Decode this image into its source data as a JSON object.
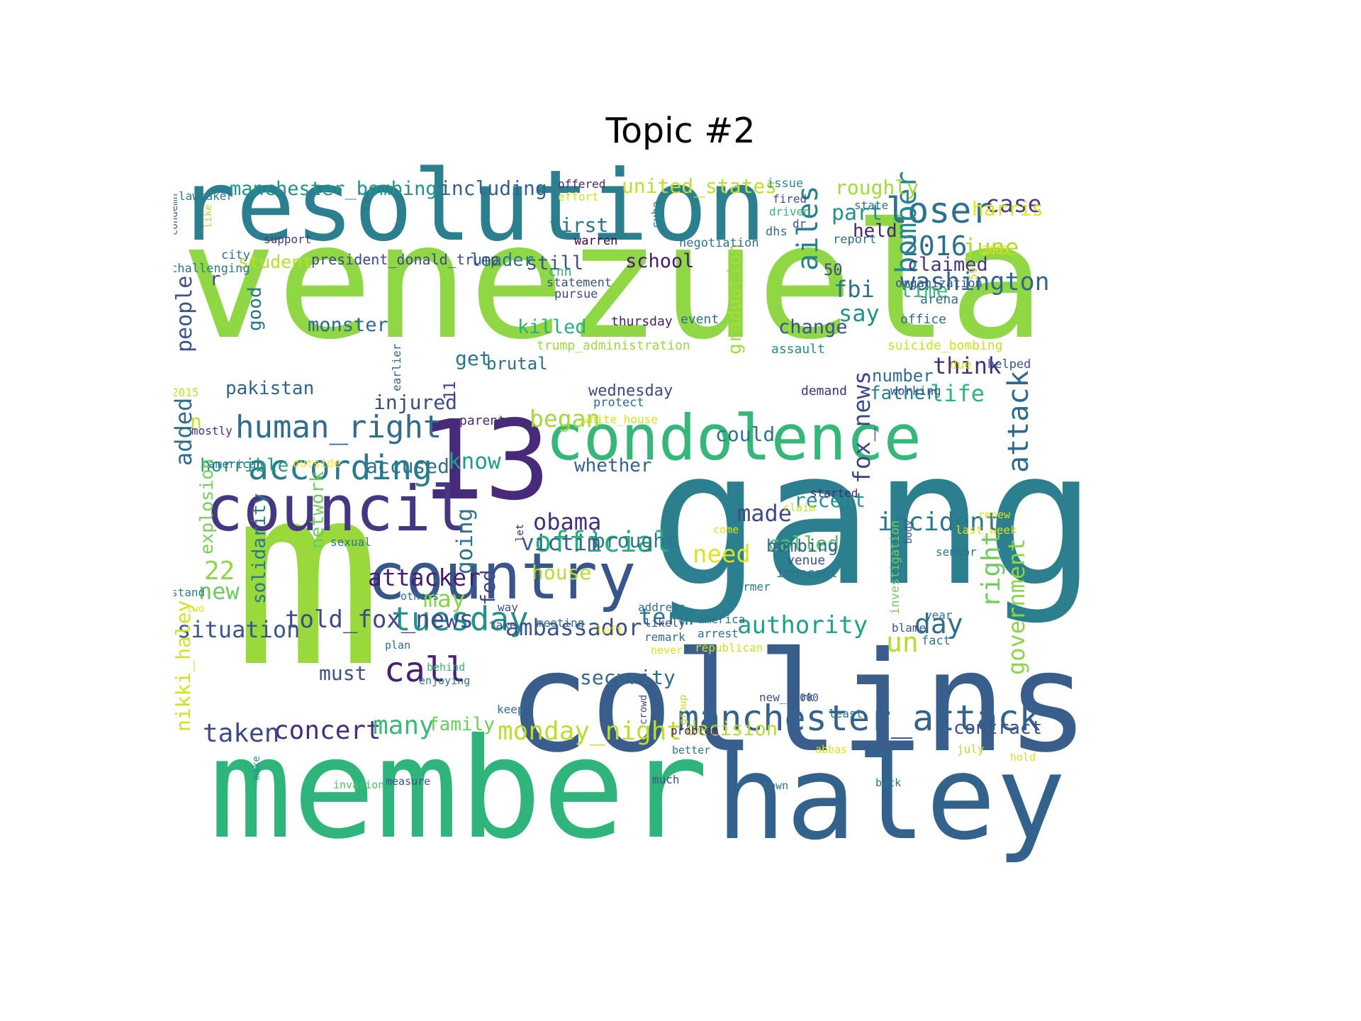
{
  "title": "Topic #2",
  "palette": {
    "background": "#ffffff",
    "c1": "#440154",
    "c2": "#472d7b",
    "c3": "#3b528b",
    "c4": "#2c728e",
    "c5": "#21918c",
    "c6": "#28ae80",
    "c7": "#5ec962",
    "c8": "#addc30",
    "c9": "#fde725"
  },
  "words": [
    {
      "text": "venezuela",
      "color": "#8fd744"
    },
    {
      "text": "resolution",
      "color": "#2c7f8e"
    },
    {
      "text": "gang",
      "color": "#2c7f8e"
    },
    {
      "text": "m",
      "color": "#9ad93c"
    },
    {
      "text": "member",
      "color": "#2fb47c"
    },
    {
      "text": "collins",
      "color": "#3a5e8c"
    },
    {
      "text": "haley",
      "color": "#33638d"
    },
    {
      "text": "13",
      "color": "#472a7a"
    },
    {
      "text": "condolence",
      "color": "#35b779"
    },
    {
      "text": "council",
      "color": "#453781"
    },
    {
      "text": "country",
      "color": "#39568c"
    },
    {
      "text": "manchester_attack",
      "color": "#33638d"
    },
    {
      "text": "loser",
      "color": "#2c728e"
    },
    {
      "text": "human_right",
      "color": "#2f6c8e"
    },
    {
      "text": "according",
      "color": "#287c8e"
    },
    {
      "text": "tuesday",
      "color": "#21918c"
    },
    {
      "text": "official",
      "color": "#29af7f"
    },
    {
      "text": "call",
      "color": "#481f70"
    },
    {
      "text": "washington",
      "color": "#31668e"
    },
    {
      "text": "2016",
      "color": "#2d708e"
    },
    {
      "text": "june",
      "color": "#addc30"
    },
    {
      "text": "case",
      "color": "#433e85"
    },
    {
      "text": "ailes",
      "color": "#26828e"
    },
    {
      "text": "bomber",
      "color": "#24868e"
    },
    {
      "text": "fox_news",
      "color": "#3f4889"
    },
    {
      "text": "attack",
      "color": "#30698e"
    },
    {
      "text": "right",
      "color": "#6ccd5a"
    },
    {
      "text": "government",
      "color": "#8bd646"
    },
    {
      "text": "incident",
      "color": "#2a788e"
    },
    {
      "text": "authority",
      "color": "#1fa187"
    },
    {
      "text": "day",
      "color": "#2f6c8e"
    },
    {
      "text": "un",
      "color": "#b5de2b"
    },
    {
      "text": "monday_night",
      "color": "#bddf26"
    },
    {
      "text": "concert",
      "color": "#472d7b"
    },
    {
      "text": "taken",
      "color": "#3e4989"
    },
    {
      "text": "many",
      "color": "#38b977"
    },
    {
      "text": "ambassador",
      "color": "#3b528b"
    },
    {
      "text": "told_fox_news",
      "color": "#3e4989"
    },
    {
      "text": "situation",
      "color": "#39568c"
    },
    {
      "text": "attacker",
      "color": "#481c6e"
    },
    {
      "text": "may",
      "color": "#86d549"
    },
    {
      "text": "obama",
      "color": "#46307e"
    },
    {
      "text": "victim",
      "color": "#34608d"
    },
    {
      "text": "brought",
      "color": "#2a778e"
    },
    {
      "text": "made",
      "color": "#3f4889"
    },
    {
      "text": "recent",
      "color": "#20938c"
    },
    {
      "text": "need",
      "color": "#dde318"
    },
    {
      "text": "called",
      "color": "#52c569"
    },
    {
      "text": "think",
      "color": "#472d7b"
    },
    {
      "text": "life",
      "color": "#2fb47c"
    },
    {
      "text": "father",
      "color": "#26828e"
    },
    {
      "text": "number",
      "color": "#2d708e"
    },
    {
      "text": "began",
      "color": "#a2da37"
    },
    {
      "text": "know",
      "color": "#1f9e89"
    },
    {
      "text": "injured",
      "color": "#3e4989"
    },
    {
      "text": "pakistan",
      "color": "#33638d"
    },
    {
      "text": "people",
      "color": "#3b528b"
    },
    {
      "text": "added",
      "color": "#2e6d8e"
    },
    {
      "text": "horrible",
      "color": "#1f9e89"
    },
    {
      "text": "accused",
      "color": "#2c728e"
    },
    {
      "text": "whether",
      "color": "#33638d"
    },
    {
      "text": "could",
      "color": "#2c728e"
    },
    {
      "text": "get",
      "color": "#2a778e"
    },
    {
      "text": "brutal",
      "color": "#2d708e"
    },
    {
      "text": "monster",
      "color": "#306a8e"
    },
    {
      "text": "killed",
      "color": "#29af7f"
    },
    {
      "text": "change",
      "color": "#3b528b"
    },
    {
      "text": "say",
      "color": "#21918c"
    },
    {
      "text": "fbi",
      "color": "#2d708e"
    },
    {
      "text": "part",
      "color": "#21918c"
    },
    {
      "text": "held",
      "color": "#482475"
    },
    {
      "text": "claimed",
      "color": "#453781"
    },
    {
      "text": "time",
      "color": "#3dbc74"
    },
    {
      "text": "50",
      "color": "#3e4989"
    },
    {
      "text": "first",
      "color": "#2a788e"
    },
    {
      "text": "still",
      "color": "#3b528b"
    },
    {
      "text": "school",
      "color": "#481a6c"
    },
    {
      "text": "leader",
      "color": "#2c728e"
    },
    {
      "text": "student",
      "color": "#b8de29"
    },
    {
      "text": "president_donald_trump",
      "color": "#3e4989"
    },
    {
      "text": "manchester_bombing",
      "color": "#20928c"
    },
    {
      "text": "including",
      "color": "#33638d"
    },
    {
      "text": "united_states",
      "color": "#c2df23"
    },
    {
      "text": "roughly",
      "color": "#a5db36"
    },
    {
      "text": "harris",
      "color": "#e5e419"
    },
    {
      "text": "graduation",
      "color": "#a8db34"
    },
    {
      "text": "good",
      "color": "#2b758e"
    },
    {
      "text": "r",
      "color": "#3b528b"
    },
    {
      "text": "n",
      "color": "#c8e020"
    },
    {
      "text": "11",
      "color": "#453781"
    },
    {
      "text": "parent",
      "color": "#482878"
    },
    {
      "text": "22",
      "color": "#8fd744"
    },
    {
      "text": "new",
      "color": "#6ccd5a"
    },
    {
      "text": "explosion",
      "color": "#74d055"
    },
    {
      "text": "solidarity",
      "color": "#2a788e"
    },
    {
      "text": "network",
      "color": "#6ccd5a"
    },
    {
      "text": "going",
      "color": "#2c728e"
    },
    {
      "text": "fed",
      "color": "#414487"
    },
    {
      "text": "house",
      "color": "#b5de2b"
    },
    {
      "text": "term",
      "color": "#2a788e"
    },
    {
      "text": "bombing",
      "color": "#31668e"
    },
    {
      "text": "innocent",
      "color": "#2c728e"
    },
    {
      "text": "venue",
      "color": "#3b528b"
    },
    {
      "text": "nikki_haley",
      "color": "#d2e21b"
    },
    {
      "text": "must",
      "color": "#3b528b"
    },
    {
      "text": "security",
      "color": "#2f6c8e"
    },
    {
      "text": "family",
      "color": "#6ccd5a"
    },
    {
      "text": "decision",
      "color": "#b5de2b"
    },
    {
      "text": "contract",
      "color": "#3b528b"
    },
    {
      "text": "wednesday",
      "color": "#3e4989"
    },
    {
      "text": "trump_administration",
      "color": "#9fda3a"
    },
    {
      "text": "white_house",
      "color": "#d5e21a"
    },
    {
      "text": "protect",
      "color": "#306a8e"
    },
    {
      "text": "demand",
      "color": "#46307e"
    },
    {
      "text": "working",
      "color": "#3b528b"
    },
    {
      "text": "helped",
      "color": "#3b528b"
    },
    {
      "text": "due",
      "color": "#dde318"
    },
    {
      "text": "suicide_bombing",
      "color": "#cde11d"
    },
    {
      "text": "assault",
      "color": "#228c8d"
    },
    {
      "text": "thursday",
      "color": "#481a6c"
    },
    {
      "text": "event",
      "color": "#2d708e"
    },
    {
      "text": "office",
      "color": "#2f6c8e"
    },
    {
      "text": "arena",
      "color": "#2f6c8e"
    },
    {
      "text": "organization",
      "color": "#3b528b"
    },
    {
      "text": "59",
      "color": "#c0df25"
    },
    {
      "text": "report",
      "color": "#2d708e"
    },
    {
      "text": "2005",
      "color": "#dde318"
    },
    {
      "text": "negotiation",
      "color": "#2c728e"
    },
    {
      "text": "warren",
      "color": "#440154"
    },
    {
      "text": "statement",
      "color": "#39568c"
    },
    {
      "text": "pursue",
      "color": "#3e4989"
    },
    {
      "text": "cnn",
      "color": "#2fb47c"
    },
    {
      "text": "cuba",
      "color": "#26828e"
    },
    {
      "text": "offered",
      "color": "#482475"
    },
    {
      "text": "effort",
      "color": "#d2e21b"
    },
    {
      "text": "issue",
      "color": "#21918c"
    },
    {
      "text": "fired",
      "color": "#3b528b"
    },
    {
      "text": "driven",
      "color": "#35b779"
    },
    {
      "text": "dr",
      "color": "#3b528b"
    },
    {
      "text": "dhs",
      "color": "#2c728e"
    },
    {
      "text": "state",
      "color": "#2c728e"
    },
    {
      "text": "lawmaker",
      "color": "#2a788e"
    },
    {
      "text": "condemn",
      "color": "#33638d"
    },
    {
      "text": "like",
      "color": "#b5de2b"
    },
    {
      "text": "support",
      "color": "#453781"
    },
    {
      "text": "city",
      "color": "#2c728e"
    },
    {
      "text": "challenging",
      "color": "#2a788e"
    },
    {
      "text": "2015",
      "color": "#c8e020"
    },
    {
      "text": "mostly",
      "color": "#46307e"
    },
    {
      "text": "american",
      "color": "#2c728e"
    },
    {
      "text": "outside",
      "color": "#fde725"
    },
    {
      "text": "earlier",
      "color": "#306a8e"
    },
    {
      "text": "sexual",
      "color": "#2c728e"
    },
    {
      "text": "let",
      "color": "#481a6c"
    },
    {
      "text": "stand",
      "color": "#26828e"
    },
    {
      "text": "two",
      "color": "#dde318"
    },
    {
      "text": "others",
      "color": "#2c728e"
    },
    {
      "text": "behind",
      "color": "#35b779"
    },
    {
      "text": "enjoying",
      "color": "#2a788e"
    },
    {
      "text": "plan",
      "color": "#2d708e"
    },
    {
      "text": "take",
      "color": "#3b528b"
    },
    {
      "text": "way",
      "color": "#3b528b"
    },
    {
      "text": "meeting",
      "color": "#2d708e"
    },
    {
      "text": "left",
      "color": "#fde725"
    },
    {
      "text": "likely",
      "color": "#3b528b"
    },
    {
      "text": "remark",
      "color": "#306a8e"
    },
    {
      "text": "never",
      "color": "#dde318"
    },
    {
      "text": "address",
      "color": "#2c728e"
    },
    {
      "text": "america",
      "color": "#2c728e"
    },
    {
      "text": "arrest",
      "color": "#2d708e"
    },
    {
      "text": "republican",
      "color": "#d2e21b"
    },
    {
      "text": "year",
      "color": "#2c728e"
    },
    {
      "text": "fact",
      "color": "#2a788e"
    },
    {
      "text": "blame",
      "color": "#3b528b"
    },
    {
      "text": "former",
      "color": "#2a788e"
    },
    {
      "text": "started",
      "color": "#482878"
    },
    {
      "text": "claim",
      "color": "#d2e21b"
    },
    {
      "text": "come",
      "color": "#dde318"
    },
    {
      "text": "senior",
      "color": "#2c728e"
    },
    {
      "text": "body",
      "color": "#3b528b"
    },
    {
      "text": "investigation",
      "color": "#74d055"
    },
    {
      "text": "renew",
      "color": "#dde318"
    },
    {
      "text": "last_week",
      "color": "#dde318"
    },
    {
      "text": "keep",
      "color": "#2c728e"
    },
    {
      "text": "crowd",
      "color": "#3b528b"
    },
    {
      "text": "group",
      "color": "#c2df23"
    },
    {
      "text": "problem",
      "color": "#481a6c"
    },
    {
      "text": "better",
      "color": "#2a788e"
    },
    {
      "text": "abbas",
      "color": "#dde318"
    },
    {
      "text": "new_york",
      "color": "#3b528b"
    },
    {
      "text": "000",
      "color": "#3b528b"
    },
    {
      "text": "least",
      "color": "#2a788e"
    },
    {
      "text": "july",
      "color": "#b5de2b"
    },
    {
      "text": "hold",
      "color": "#dde318"
    },
    {
      "text": "make",
      "color": "#21918c"
    },
    {
      "text": "much",
      "color": "#3b528b"
    },
    {
      "text": "town",
      "color": "#2c728e"
    },
    {
      "text": "back",
      "color": "#2c728e"
    },
    {
      "text": "invasion",
      "color": "#4ac16d"
    },
    {
      "text": "measure",
      "color": "#3b528b"
    }
  ]
}
